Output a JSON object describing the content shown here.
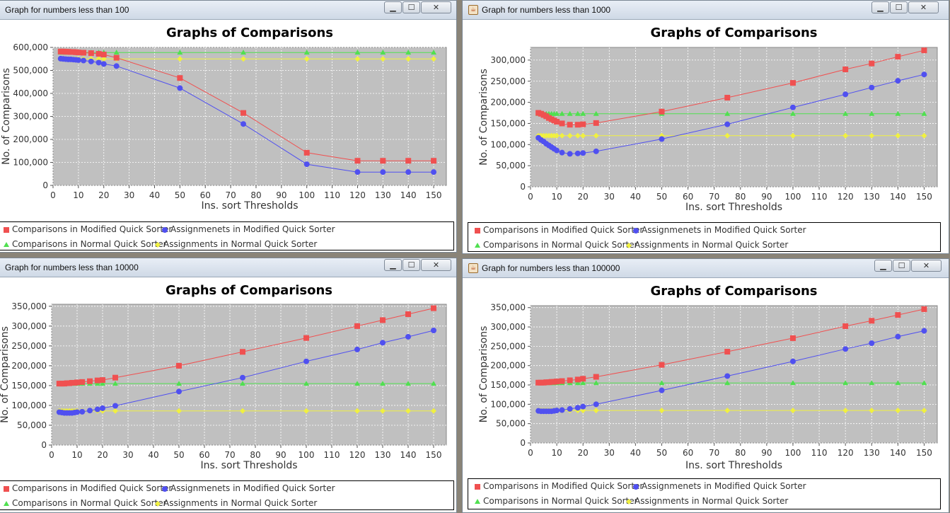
{
  "windows": [
    {
      "title": "Graph for numbers less than 100",
      "show_java_icon": false,
      "chart_data": {
        "type": "line",
        "title": "Graphs of Comparisons",
        "xlabel": "Ins. sort Thresholds",
        "ylabel": "No. of Comparisons",
        "xlim": [
          0,
          155
        ],
        "ylim": [
          0,
          600000
        ],
        "xticks": [
          0,
          10,
          20,
          30,
          40,
          50,
          60,
          70,
          80,
          90,
          100,
          110,
          120,
          130,
          140,
          150
        ],
        "yticks": [
          0,
          100000,
          200000,
          300000,
          400000,
          500000,
          600000
        ],
        "ytick_labels": [
          "0",
          "100,000",
          "200,000",
          "300,000",
          "400,000",
          "500,000",
          "600,000"
        ],
        "grid": true,
        "legend_position": "bottom",
        "x": [
          3,
          4,
          5,
          6,
          7,
          8,
          9,
          10,
          12,
          15,
          18,
          20,
          25,
          50,
          75,
          100,
          120,
          130,
          140,
          150
        ],
        "series": [
          {
            "name": "Comparisons in Modified Quick Sorter",
            "color": "#f05050",
            "marker": "square",
            "values": [
              582000,
              582000,
              581000,
              581000,
              580000,
              580000,
              579000,
              578000,
              577000,
              575000,
              572000,
              569000,
              555000,
              467000,
              315000,
              142000,
              107000,
              107000,
              107000,
              107000
            ]
          },
          {
            "name": "Assignmenets in Modified Quick Sorter",
            "color": "#5050f0",
            "marker": "circle",
            "values": [
              551000,
              550000,
              549000,
              548000,
              548000,
              547000,
              546000,
              545000,
              543000,
              539000,
              534000,
              528000,
              519000,
              423000,
              267000,
              92000,
              58000,
              58000,
              58000,
              58000
            ]
          },
          {
            "name": "Comparisons in Normal Quick Sorter",
            "color": "#50e050",
            "marker": "triangle",
            "values": [
              578000,
              578000,
              578000,
              578000,
              578000,
              578000,
              578000,
              578000,
              578000,
              578000,
              578000,
              578000,
              578000,
              578000,
              578000,
              578000,
              578000,
              578000,
              578000,
              578000
            ]
          },
          {
            "name": "Assignments in Normal Quick Sorter",
            "color": "#f0f040",
            "marker": "diamond",
            "values": [
              550000,
              550000,
              550000,
              550000,
              550000,
              550000,
              550000,
              550000,
              550000,
              550000,
              550000,
              550000,
              550000,
              550000,
              550000,
              550000,
              550000,
              550000,
              550000,
              550000
            ]
          }
        ]
      }
    },
    {
      "title": "Graph for numbers less than 1000",
      "show_java_icon": true,
      "chart_data": {
        "type": "line",
        "title": "Graphs of Comparisons",
        "xlabel": "Ins. sort Thresholds",
        "ylabel": "No. of Comparisons",
        "xlim": [
          0,
          155
        ],
        "ylim": [
          0,
          330000
        ],
        "xticks": [
          0,
          10,
          20,
          30,
          40,
          50,
          60,
          70,
          80,
          90,
          100,
          110,
          120,
          130,
          140,
          150
        ],
        "yticks": [
          0,
          50000,
          100000,
          150000,
          200000,
          250000,
          300000
        ],
        "ytick_labels": [
          "0",
          "50,000",
          "100,000",
          "150,000",
          "200,000",
          "250,000",
          "300,000"
        ],
        "grid": true,
        "legend_position": "bottom",
        "x": [
          3,
          4,
          5,
          6,
          7,
          8,
          9,
          10,
          12,
          15,
          18,
          20,
          25,
          50,
          75,
          100,
          120,
          130,
          140,
          150
        ],
        "series": [
          {
            "name": "Comparisons in Modified Quick Sorter",
            "color": "#f05050",
            "marker": "square",
            "values": [
              175000,
              173000,
              170000,
              167000,
              163000,
              160000,
              157000,
              154000,
              150000,
              147000,
              147000,
              148000,
              151000,
              178000,
              211000,
              246000,
              278000,
              292000,
              308000,
              323000
            ]
          },
          {
            "name": "Assignmenets in Modified Quick Sorter",
            "color": "#5050f0",
            "marker": "circle",
            "values": [
              116000,
              111000,
              107000,
              102000,
              98000,
              94000,
              90000,
              86000,
              81000,
              78000,
              79000,
              80000,
              84000,
              113000,
              148000,
              188000,
              219000,
              235000,
              251000,
              266000
            ]
          },
          {
            "name": "Comparisons in Normal Quick Sorter",
            "color": "#50e050",
            "marker": "triangle",
            "values": [
              173000,
              173000,
              173000,
              173000,
              173000,
              173000,
              173000,
              173000,
              173000,
              173000,
              173000,
              173000,
              173000,
              173000,
              173000,
              173000,
              173000,
              173000,
              173000,
              173000
            ]
          },
          {
            "name": "Assignments in Normal Quick Sorter",
            "color": "#f0f040",
            "marker": "diamond",
            "values": [
              121000,
              121000,
              121000,
              121000,
              121000,
              121000,
              121000,
              121000,
              121000,
              121000,
              121000,
              121000,
              121000,
              121000,
              121000,
              121000,
              121000,
              121000,
              121000,
              121000
            ]
          }
        ]
      }
    },
    {
      "title": "Graph for numbers less than 10000",
      "show_java_icon": false,
      "chart_data": {
        "type": "line",
        "title": "Graphs of Comparisons",
        "xlabel": "Ins. sort Thresholds",
        "ylabel": "No. of Comparisons",
        "xlim": [
          0,
          155
        ],
        "ylim": [
          0,
          355000
        ],
        "xticks": [
          0,
          10,
          20,
          30,
          40,
          50,
          60,
          70,
          80,
          90,
          100,
          110,
          120,
          130,
          140,
          150
        ],
        "yticks": [
          0,
          50000,
          100000,
          150000,
          200000,
          250000,
          300000,
          350000
        ],
        "ytick_labels": [
          "0",
          "50,000",
          "100,000",
          "150,000",
          "200,000",
          "250,000",
          "300,000",
          "350,000"
        ],
        "grid": true,
        "legend_position": "bottom",
        "x": [
          3,
          4,
          5,
          6,
          7,
          8,
          9,
          10,
          12,
          15,
          18,
          20,
          25,
          50,
          75,
          100,
          120,
          130,
          140,
          150
        ],
        "series": [
          {
            "name": "Comparisons in Modified Quick Sorter",
            "color": "#f05050",
            "marker": "square",
            "values": [
              155000,
              155000,
              155000,
              156000,
              156000,
              157000,
              157000,
              158000,
              159000,
              161000,
              163000,
              164000,
              170000,
              200000,
              235000,
              270000,
              300000,
              315000,
              330000,
              345000
            ]
          },
          {
            "name": "Assignmenets in Modified Quick Sorter",
            "color": "#5050f0",
            "marker": "circle",
            "values": [
              83000,
              82000,
              81000,
              81000,
              81000,
              81000,
              82000,
              83000,
              84000,
              87000,
              90000,
              93000,
              99000,
              135000,
              170000,
              211000,
              241000,
              258000,
              273000,
              289000
            ]
          },
          {
            "name": "Comparisons in Normal Quick Sorter",
            "color": "#50e050",
            "marker": "triangle",
            "values": [
              155000,
              155000,
              155000,
              155000,
              155000,
              155000,
              155000,
              155000,
              155000,
              155000,
              155000,
              155000,
              155000,
              155000,
              155000,
              155000,
              155000,
              155000,
              155000,
              155000
            ]
          },
          {
            "name": "Assignments in Normal Quick Sorter",
            "color": "#f0f040",
            "marker": "diamond",
            "values": [
              86000,
              86000,
              86000,
              86000,
              86000,
              86000,
              86000,
              86000,
              86000,
              86000,
              86000,
              86000,
              86000,
              86000,
              86000,
              86000,
              86000,
              86000,
              86000,
              86000
            ]
          }
        ]
      }
    },
    {
      "title": "Graph for numbers less than 100000",
      "show_java_icon": true,
      "chart_data": {
        "type": "line",
        "title": "Graphs of Comparisons",
        "xlabel": "Ins. sort Thresholds",
        "ylabel": "No. of Comparisons",
        "xlim": [
          0,
          155
        ],
        "ylim": [
          0,
          355000
        ],
        "xticks": [
          0,
          10,
          20,
          30,
          40,
          50,
          60,
          70,
          80,
          90,
          100,
          110,
          120,
          130,
          140,
          150
        ],
        "yticks": [
          0,
          50000,
          100000,
          150000,
          200000,
          250000,
          300000,
          350000
        ],
        "ytick_labels": [
          "0",
          "50,000",
          "100,000",
          "150,000",
          "200,000",
          "250,000",
          "300,000",
          "350,000"
        ],
        "grid": true,
        "legend_position": "bottom",
        "x": [
          3,
          4,
          5,
          6,
          7,
          8,
          9,
          10,
          12,
          15,
          18,
          20,
          25,
          50,
          75,
          100,
          120,
          130,
          140,
          150
        ],
        "series": [
          {
            "name": "Comparisons in Modified Quick Sorter",
            "color": "#f05050",
            "marker": "square",
            "values": [
              156000,
              156000,
              156000,
              157000,
              157000,
              158000,
              158000,
              159000,
              160000,
              162000,
              164000,
              166000,
              171000,
              202000,
              236000,
              271000,
              302000,
              316000,
              331000,
              346000
            ]
          },
          {
            "name": "Assignmenets in Modified Quick Sorter",
            "color": "#5050f0",
            "marker": "circle",
            "values": [
              83000,
              82000,
              82000,
              82000,
              82000,
              82000,
              83000,
              84000,
              85000,
              88000,
              91000,
              94000,
              100000,
              136000,
              173000,
              211000,
              243000,
              258000,
              275000,
              290000
            ]
          },
          {
            "name": "Comparisons in Normal Quick Sorter",
            "color": "#50e050",
            "marker": "triangle",
            "values": [
              155000,
              155000,
              155000,
              155000,
              155000,
              155000,
              155000,
              155000,
              155000,
              155000,
              155000,
              155000,
              155000,
              155000,
              155000,
              155000,
              155000,
              155000,
              155000,
              155000
            ]
          },
          {
            "name": "Assignments in Normal Quick Sorter",
            "color": "#f0f040",
            "marker": "diamond",
            "values": [
              84000,
              84000,
              84000,
              84000,
              84000,
              84000,
              84000,
              84000,
              84000,
              84000,
              84000,
              84000,
              84000,
              84000,
              84000,
              84000,
              84000,
              84000,
              84000,
              84000
            ]
          }
        ]
      }
    }
  ],
  "window_buttons": {
    "minimize": "▁",
    "maximize": "☐",
    "close": "✕"
  }
}
